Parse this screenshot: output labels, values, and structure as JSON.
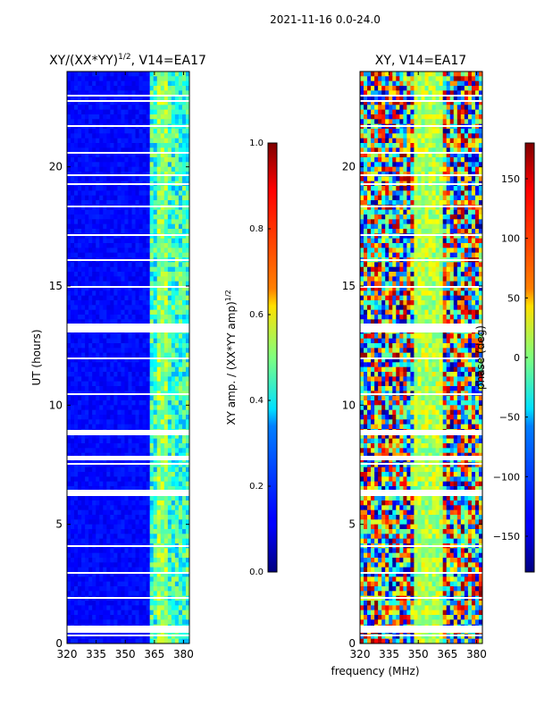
{
  "figure": {
    "suptitle": "2021-11-16 0.0-24.0",
    "xlabel_shared": "frequency (MHz)"
  },
  "chart_data": [
    {
      "type": "heatmap",
      "id": "amp",
      "title_prefix": "XY/(XX*YY)",
      "title_exp": "1/2",
      "title_suffix": ", V14=EA17",
      "xlabel": "",
      "ylabel": "UT (hours)",
      "xlim": [
        320,
        383
      ],
      "ylim": [
        0,
        24
      ],
      "xticks": [
        320,
        335,
        350,
        365,
        380
      ],
      "yticks": [
        0,
        5,
        10,
        15,
        20
      ],
      "colorbar": {
        "label_main": "XY amp. / (XX*YY amp)",
        "label_exp": "1/2",
        "range": [
          0.0,
          1.0
        ],
        "ticks": [
          "0.0",
          "0.2",
          "0.4",
          "0.6",
          "0.8",
          "1.0"
        ],
        "tick_values": [
          0.0,
          0.2,
          0.4,
          0.6,
          0.8,
          1.0
        ]
      }
    },
    {
      "type": "heatmap",
      "id": "phase",
      "title": "XY, V14=EA17",
      "xlabel": "frequency (MHz)",
      "ylabel": "",
      "xlim": [
        320,
        383
      ],
      "ylim": [
        0,
        24
      ],
      "xticks": [
        320,
        335,
        350,
        365,
        380
      ],
      "yticks": [
        0,
        5,
        10,
        15,
        20
      ],
      "colorbar": {
        "label": "phase (deg)",
        "range": [
          -180,
          180
        ],
        "ticks": [
          "−150",
          "−100",
          "−50",
          "0",
          "50",
          "100",
          "150"
        ],
        "tick_values": [
          -150,
          -100,
          -50,
          0,
          50,
          100,
          150
        ]
      }
    }
  ]
}
